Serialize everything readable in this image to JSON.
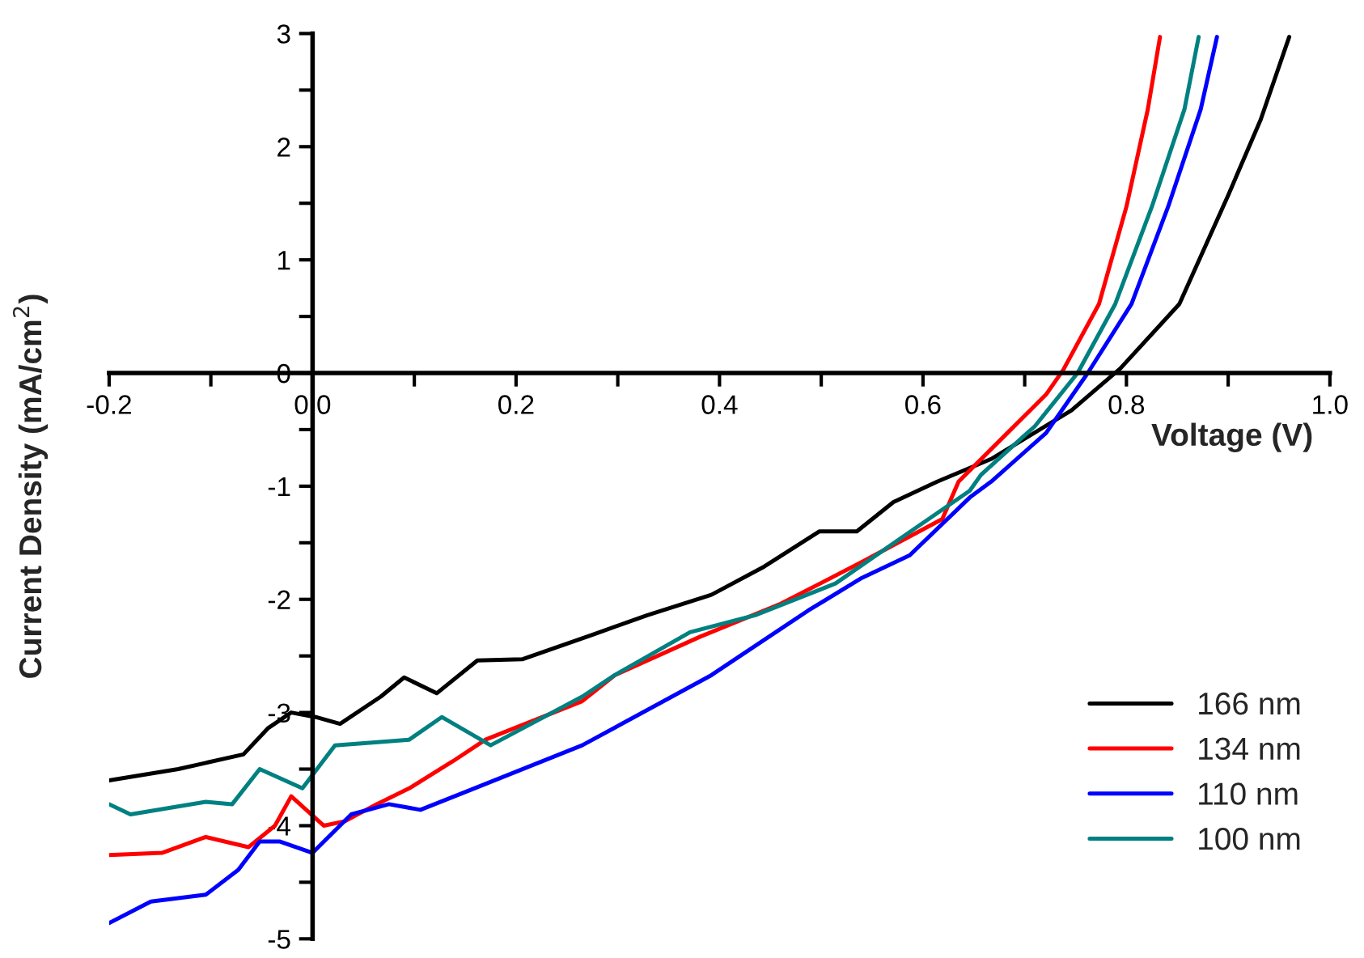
{
  "chart_data": {
    "type": "line",
    "xlabel": "Voltage (V)",
    "ylabel": "Current Density (mA/cm$^{2}$)",
    "xlim": [
      -0.2,
      1.0
    ],
    "ylim": [
      -5,
      3
    ],
    "xticks": [
      "-0.2",
      {
        "value": -0.1,
        "label": null
      },
      {
        "value": 0.0,
        "label": "0.0"
      },
      {
        "value": 0.1,
        "label": null
      },
      0.2,
      {
        "value": 0.3,
        "label": null
      },
      0.4,
      {
        "value": 0.5,
        "label": null
      },
      0.6,
      {
        "value": 0.7,
        "label": null
      },
      0.8,
      {
        "value": 0.9,
        "label": null
      },
      {
        "value": 1.0,
        "label": "1.0"
      }
    ],
    "yticks": [
      -5,
      {
        "value": -4.5,
        "label": null
      },
      -4,
      {
        "value": -3.5,
        "label": null
      },
      -3,
      {
        "value": -2.5,
        "label": null
      },
      -2,
      {
        "value": -1.5,
        "label": null
      },
      -1,
      {
        "value": -0.5,
        "label": null
      },
      0,
      {
        "value": 0.5,
        "label": null
      },
      1,
      {
        "value": 1.5,
        "label": null
      },
      2,
      {
        "value": 2.5,
        "label": null
      },
      3
    ],
    "grid": false,
    "legend": "bottom right",
    "marker": "none",
    "line_style": "solid",
    "series": [
      {
        "name": "166 nm",
        "color": "#000000",
        "x": [
          -0.2,
          -0.132,
          -0.068,
          -0.044,
          -0.021,
          0.003,
          0.027,
          0.067,
          0.09,
          0.122,
          0.162,
          0.206,
          0.276,
          0.329,
          0.392,
          0.444,
          0.498,
          0.535,
          0.571,
          0.614,
          0.667,
          0.746,
          0.794,
          0.852,
          0.9,
          0.932,
          0.96
        ],
        "values": [
          -3.6,
          -3.5,
          -3.37,
          -3.14,
          -3.0,
          -3.04,
          -3.1,
          -2.86,
          -2.69,
          -2.83,
          -2.54,
          -2.53,
          -2.31,
          -2.14,
          -1.96,
          -1.71,
          -1.4,
          -1.4,
          -1.14,
          -0.96,
          -0.76,
          -0.33,
          0.04,
          0.61,
          1.57,
          2.24,
          2.97
        ]
      },
      {
        "name": "134 nm",
        "color": "#ff0000",
        "x": [
          -0.2,
          -0.148,
          -0.105,
          -0.063,
          -0.037,
          -0.021,
          0.011,
          0.032,
          0.063,
          0.095,
          0.138,
          0.17,
          0.265,
          0.297,
          0.381,
          0.46,
          0.54,
          0.619,
          0.635,
          0.683,
          0.721,
          0.738,
          0.773,
          0.8,
          0.821,
          0.833
        ],
        "values": [
          -4.26,
          -4.24,
          -4.1,
          -4.19,
          -4.0,
          -3.74,
          -4.0,
          -3.96,
          -3.81,
          -3.67,
          -3.43,
          -3.24,
          -2.9,
          -2.67,
          -2.33,
          -2.04,
          -1.67,
          -1.29,
          -0.96,
          -0.53,
          -0.19,
          0.03,
          0.61,
          1.47,
          2.33,
          2.97
        ]
      },
      {
        "name": "110 nm",
        "color": "#0000ff",
        "x": [
          -0.2,
          -0.159,
          -0.105,
          -0.073,
          -0.052,
          -0.032,
          0.0,
          0.038,
          0.075,
          0.106,
          0.159,
          0.265,
          0.392,
          0.487,
          0.54,
          0.587,
          0.646,
          0.667,
          0.721,
          0.762,
          0.805,
          0.841,
          0.873,
          0.889
        ],
        "values": [
          -4.86,
          -4.67,
          -4.61,
          -4.39,
          -4.14,
          -4.14,
          -4.24,
          -3.9,
          -3.81,
          -3.86,
          -3.67,
          -3.29,
          -2.67,
          -2.1,
          -1.81,
          -1.61,
          -1.1,
          -0.96,
          -0.53,
          0.0,
          0.61,
          1.47,
          2.33,
          2.97
        ]
      },
      {
        "name": "100 nm",
        "color": "#008080",
        "x": [
          -0.2,
          -0.179,
          -0.105,
          -0.079,
          -0.052,
          -0.01,
          0.022,
          0.095,
          0.127,
          0.175,
          0.265,
          0.297,
          0.371,
          0.435,
          0.514,
          0.583,
          0.646,
          0.657,
          0.71,
          0.752,
          0.789,
          0.825,
          0.857,
          0.871
        ],
        "values": [
          -3.81,
          -3.9,
          -3.79,
          -3.81,
          -3.5,
          -3.67,
          -3.29,
          -3.24,
          -3.04,
          -3.29,
          -2.86,
          -2.67,
          -2.29,
          -2.14,
          -1.86,
          -1.43,
          -1.04,
          -0.9,
          -0.47,
          0.0,
          0.61,
          1.47,
          2.33,
          2.97
        ]
      }
    ]
  }
}
